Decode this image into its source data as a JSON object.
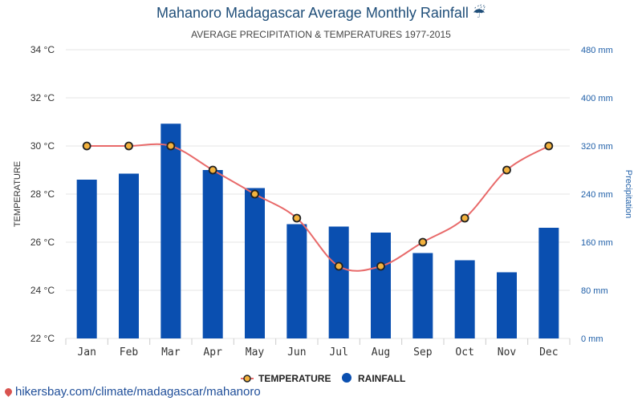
{
  "chart_data": {
    "type": "bar+line",
    "title": "Mahanoro Madagascar Average Monthly Rainfall ☔",
    "subtitle": "AVERAGE PRECIPITATION & TEMPERATURES 1977-2015",
    "categories": [
      "Jan",
      "Feb",
      "Mar",
      "Apr",
      "May",
      "Jun",
      "Jul",
      "Aug",
      "Sep",
      "Oct",
      "Nov",
      "Dec"
    ],
    "series": [
      {
        "name": "TEMPERATURE",
        "axis": "left",
        "kind": "line",
        "values": [
          30,
          30,
          30,
          29,
          28,
          27,
          25,
          25,
          26,
          27,
          29,
          30
        ]
      },
      {
        "name": "RAINFALL",
        "axis": "right",
        "kind": "bar",
        "values": [
          264,
          274,
          357,
          280,
          250,
          190,
          186,
          176,
          142,
          130,
          110,
          184
        ]
      }
    ],
    "y_left": {
      "label": "TEMPERATURE",
      "min": 22,
      "max": 34,
      "ticks": [
        "22 °C",
        "24 °C",
        "26 °C",
        "28 °C",
        "30 °C",
        "32 °C",
        "34 °C"
      ]
    },
    "y_right": {
      "label": "Precipitation",
      "min": 0,
      "max": 480,
      "ticks": [
        "0 mm",
        "80 mm",
        "160 mm",
        "240 mm",
        "320 mm",
        "400 mm",
        "480 mm"
      ]
    },
    "legend": "bottom-center",
    "grid": true,
    "colors": {
      "bar": "#0a4fb0",
      "line": "#e86a6a",
      "marker_fill": "#f3b23d",
      "marker_stroke": "#222222",
      "grid": "#e5e5e5"
    }
  },
  "footer": {
    "source": "hikersbay.com/climate/madagascar/mahanoro"
  }
}
